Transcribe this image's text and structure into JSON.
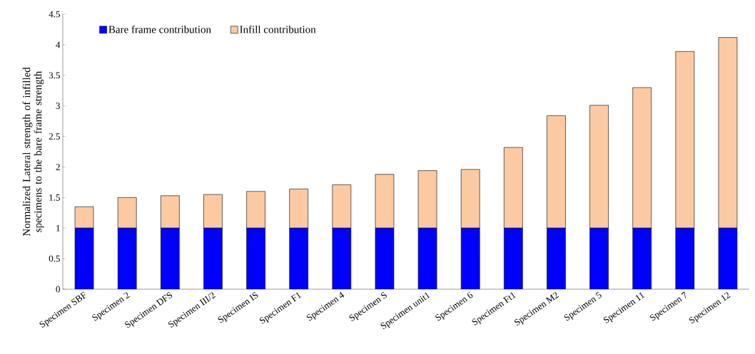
{
  "chart_data": {
    "type": "bar",
    "stacked": true,
    "ylabel": "Normalized Lateral strength of infilled specimens to the bare frame strength",
    "categories": [
      "Specimen SBF",
      "Specimen 2",
      "Specimen DFS",
      "Specimen III/2",
      "Specimen IS",
      "Specimen F1",
      "Specimen 4",
      "Specimen S",
      "Specimen unit1",
      "Specimen 6",
      "Specimen Ft1",
      "Specimen M2",
      "Specimen 5",
      "Specimen 11",
      "Specimen 7",
      "Specimen 12"
    ],
    "series": [
      {
        "name": "Bare frame contribution",
        "color": "#0000ff",
        "values": [
          1,
          1,
          1,
          1,
          1,
          1,
          1,
          1,
          1,
          1,
          1,
          1,
          1,
          1,
          1,
          1
        ]
      },
      {
        "name": "Infill contribution",
        "color": "#fbcaa3",
        "values": [
          0.35,
          0.5,
          0.53,
          0.55,
          0.6,
          0.64,
          0.71,
          0.88,
          0.94,
          0.96,
          1.32,
          1.84,
          2.01,
          2.3,
          2.89,
          3.12
        ]
      }
    ],
    "ylim": [
      0,
      4.5
    ],
    "yticks": [
      0,
      0.5,
      1,
      1.5,
      2,
      2.5,
      3,
      3.5,
      4,
      4.5
    ],
    "legend": "top left",
    "grid": false
  }
}
